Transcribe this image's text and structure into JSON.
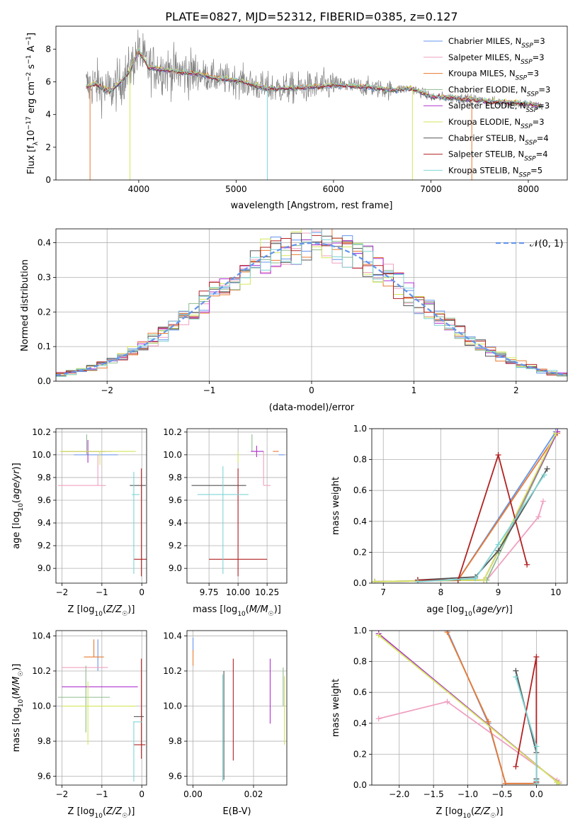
{
  "figure_title": "PLATE=0827, MJD=52312, FIBERID=0385, z=0.127",
  "colors": {
    "Chabrier MILES": "#6495ed",
    "Salpeter MILES": "#f0a0c0",
    "Kroupa MILES": "#e87a30",
    "Chabrier ELODIE": "#8fbc8f",
    "Salpeter ELODIE": "#b030d0",
    "Kroupa ELODIE": "#d4e65a",
    "Chabrier STELIB": "#555555",
    "Salpeter STELIB": "#b22222",
    "Kroupa STELIB": "#7fd4d4"
  },
  "chart_data": [
    {
      "id": "spectrum",
      "type": "line",
      "title": "PLATE=0827, MJD=52312, FIBERID=0385, z=0.127",
      "xlabel": "wavelength [Angstrom, rest frame]",
      "ylabel": "Flux [f_λ10^-17 erg cm^-2 s^-1 A^-1]",
      "xlim": [
        3150,
        8400
      ],
      "ylim": [
        0,
        9.4
      ],
      "xticks": [
        4000,
        5000,
        6000,
        7000,
        8000
      ],
      "yticks": [
        0,
        2,
        4,
        6,
        8
      ],
      "legend_position": "top-right",
      "legend": [
        {
          "label": "Chabrier MILES, N_SSP=3",
          "color": "#6495ed"
        },
        {
          "label": "Salpeter MILES, N_SSP=3",
          "color": "#f0a0c0"
        },
        {
          "label": "Kroupa MILES, N_SSP=3",
          "color": "#e87a30"
        },
        {
          "label": "Chabrier ELODIE, N_SSP=3",
          "color": "#8fbc8f"
        },
        {
          "label": "Salpeter ELODIE, N_SSP=3",
          "color": "#b030d0"
        },
        {
          "label": "Kroupa ELODIE, N_SSP=3",
          "color": "#d4e65a"
        },
        {
          "label": "Chabrier STELIB, N_SSP=4",
          "color": "#555555"
        },
        {
          "label": "Salpeter STELIB, N_SSP=4",
          "color": "#b22222"
        },
        {
          "label": "Kroupa STELIB, N_SSP=5",
          "color": "#7fd4d4"
        }
      ],
      "data_color": "#808080",
      "continuum": [
        [
          3460,
          5.7
        ],
        [
          3550,
          5.9
        ],
        [
          3700,
          5.4
        ],
        [
          3800,
          5.9
        ],
        [
          3900,
          6.6
        ],
        [
          4000,
          7.9
        ],
        [
          4100,
          6.9
        ],
        [
          4200,
          6.8
        ],
        [
          4400,
          6.6
        ],
        [
          4600,
          6.5
        ],
        [
          4800,
          6.2
        ],
        [
          5000,
          6.1
        ],
        [
          5300,
          5.6
        ],
        [
          5600,
          5.6
        ],
        [
          6000,
          5.8
        ],
        [
          6300,
          5.7
        ],
        [
          6600,
          5.5
        ],
        [
          6800,
          5.6
        ],
        [
          7000,
          5.1
        ],
        [
          7300,
          5.0
        ],
        [
          7600,
          4.8
        ],
        [
          7900,
          4.7
        ],
        [
          8150,
          4.5
        ]
      ]
    },
    {
      "id": "residuals",
      "type": "histogram",
      "xlabel": "(data-model)/error",
      "ylabel": "Normed distribution",
      "xlim": [
        -2.5,
        2.5
      ],
      "ylim": [
        0,
        0.44
      ],
      "xticks": [
        -2,
        -1,
        0,
        1,
        2
      ],
      "yticks": [
        0.0,
        0.1,
        0.2,
        0.3,
        0.4
      ],
      "grid": true,
      "legend_position": "top-right",
      "reference_label": "𝒩(0, 1)",
      "reference_color": "#6495ed",
      "bin_width": 0.1
    },
    {
      "id": "age_vs_Z",
      "type": "errorbar",
      "xlabel": "Z [log10(Z/Z☉)]",
      "ylabel": "age [log10(age/yr)]",
      "xlim": [
        -2.15,
        0.12
      ],
      "ylim": [
        8.87,
        10.23
      ],
      "xticks": [
        -2,
        -1,
        0
      ],
      "yticks": [
        9.0,
        9.2,
        9.4,
        9.6,
        9.8,
        10.0,
        10.2
      ],
      "grid": true,
      "points": [
        {
          "model": "Chabrier MILES",
          "x": -1.15,
          "xerr": [
            0.55,
            0.55
          ],
          "y": 10.0,
          "yerr": [
            0.0,
            0.0
          ]
        },
        {
          "model": "Salpeter MILES",
          "x": -1.1,
          "xerr": [
            1.0,
            0.2
          ],
          "y": 9.73,
          "yerr": [
            0.0,
            0.27
          ]
        },
        {
          "model": "Kroupa MILES",
          "x": -1.35,
          "xerr": [
            0.65,
            0.45
          ],
          "y": 10.03,
          "yerr": [
            0.0,
            0.0
          ]
        },
        {
          "model": "Chabrier ELODIE",
          "x": -1.38,
          "xerr": [
            0.65,
            0.45
          ],
          "y": 10.03,
          "yerr": [
            0.03,
            0.15
          ]
        },
        {
          "model": "Salpeter ELODIE",
          "x": -1.35,
          "xerr": [
            0.65,
            0.6
          ],
          "y": 10.03,
          "yerr": [
            0.1,
            0.1
          ]
        },
        {
          "model": "Kroupa ELODIE",
          "x": -1.05,
          "xerr": [
            1.0,
            0.9
          ],
          "y": 10.03,
          "yerr": [
            0.12,
            0.0
          ]
        },
        {
          "model": "Chabrier STELIB",
          "x": -0.2,
          "xerr": [
            0.1,
            0.3
          ],
          "y": 9.73,
          "yerr": [
            0.0,
            0.0
          ]
        },
        {
          "model": "Salpeter STELIB",
          "x": -0.01,
          "xerr": [
            0.2,
            0.2
          ],
          "y": 9.08,
          "yerr": [
            0.15,
            0.8
          ]
        },
        {
          "model": "Kroupa STELIB",
          "x": -0.2,
          "xerr": [
            0.05,
            0.15
          ],
          "y": 9.65,
          "yerr": [
            0.7,
            0.2
          ]
        }
      ]
    },
    {
      "id": "age_vs_mass",
      "type": "errorbar",
      "xlabel": "mass [log10(M/M☉)]",
      "ylabel": "",
      "xlim": [
        9.56,
        10.42
      ],
      "ylim": [
        8.87,
        10.23
      ],
      "xticks": [
        9.75,
        10.0,
        10.25
      ],
      "xticklabels": [
        "9.75",
        "10.00",
        "10.25"
      ],
      "yticks": [
        9.0,
        9.2,
        9.4,
        9.6,
        9.8,
        10.0,
        10.2
      ],
      "grid": true,
      "points": [
        {
          "model": "Chabrier MILES",
          "x": 10.35,
          "xerr": [
            0.0,
            0.05
          ],
          "y": 10.0,
          "yerr": [
            0.0,
            0.0
          ]
        },
        {
          "model": "Salpeter MILES",
          "x": 10.22,
          "xerr": [
            0.0,
            0.06
          ],
          "y": 9.73,
          "yerr": [
            0.0,
            0.3
          ]
        },
        {
          "model": "Kroupa MILES",
          "x": 10.3,
          "xerr": [
            0.0,
            0.05
          ],
          "y": 10.03,
          "yerr": [
            0.0,
            0.0
          ]
        },
        {
          "model": "Chabrier ELODIE",
          "x": 10.12,
          "xerr": [
            0.0,
            0.1
          ],
          "y": 10.03,
          "yerr": [
            0.0,
            0.15
          ]
        },
        {
          "model": "Salpeter ELODIE",
          "x": 10.16,
          "xerr": [
            0.05,
            0.06
          ],
          "y": 10.03,
          "yerr": [
            0.05,
            0.05
          ]
        },
        {
          "model": "Kroupa ELODIE",
          "x": 10.0,
          "xerr": [
            0.0,
            0.0
          ],
          "y": 10.03,
          "yerr": [
            0.1,
            0.0
          ]
        },
        {
          "model": "Chabrier STELIB",
          "x": 9.85,
          "xerr": [
            0.25,
            0.22
          ],
          "y": 9.73,
          "yerr": [
            0.0,
            0.0
          ]
        },
        {
          "model": "Salpeter STELIB",
          "x": 10.0,
          "xerr": [
            0.25,
            0.25
          ],
          "y": 9.08,
          "yerr": [
            0.15,
            0.8
          ]
        },
        {
          "model": "Kroupa STELIB",
          "x": 9.87,
          "xerr": [
            0.22,
            0.22
          ],
          "y": 9.65,
          "yerr": [
            0.7,
            0.25
          ]
        }
      ]
    },
    {
      "id": "weights_vs_age",
      "type": "line",
      "xlabel": "age [log10(age/yr)]",
      "ylabel": "mass weight",
      "xlim": [
        6.8,
        10.2
      ],
      "ylim": [
        0,
        1.0
      ],
      "xticks": [
        7,
        8,
        9,
        10
      ],
      "yticks": [
        0.0,
        0.2,
        0.4,
        0.6,
        0.8,
        1.0
      ],
      "grid": true,
      "series": [
        {
          "model": "Chabrier MILES",
          "x": [
            7.6,
            8.3,
            10.0
          ],
          "y": [
            0.02,
            0.02,
            0.98
          ]
        },
        {
          "model": "Salpeter MILES",
          "x": [
            7.6,
            8.8,
            9.7,
            9.78
          ],
          "y": [
            0.02,
            0.02,
            0.43,
            0.53
          ]
        },
        {
          "model": "Kroupa MILES",
          "x": [
            7.6,
            8.3,
            10.03
          ],
          "y": [
            0.02,
            0.02,
            0.97
          ]
        },
        {
          "model": "Chabrier ELODIE",
          "x": [
            6.85,
            8.8,
            10.03
          ],
          "y": [
            0.01,
            0.02,
            0.98
          ]
        },
        {
          "model": "Salpeter ELODIE",
          "x": [
            6.85,
            8.75,
            10.03
          ],
          "y": [
            0.01,
            0.02,
            0.98
          ]
        },
        {
          "model": "Kroupa ELODIE",
          "x": [
            6.85,
            8.75,
            10.0
          ],
          "y": [
            0.01,
            0.02,
            0.97
          ]
        },
        {
          "model": "Chabrier STELIB",
          "x": [
            7.6,
            8.6,
            9.0,
            9.85
          ],
          "y": [
            0.02,
            0.04,
            0.21,
            0.74
          ]
        },
        {
          "model": "Salpeter STELIB",
          "x": [
            7.6,
            8.3,
            9.0,
            9.5
          ],
          "y": [
            0.02,
            0.02,
            0.83,
            0.12
          ]
        },
        {
          "model": "Kroupa STELIB",
          "x": [
            7.6,
            8.6,
            9.0,
            9.8
          ],
          "y": [
            0.01,
            0.03,
            0.25,
            0.7
          ]
        }
      ]
    },
    {
      "id": "mass_vs_Z",
      "type": "errorbar",
      "xlabel": "Z [log10(Z/Z☉)]",
      "ylabel": "mass [log10(M/M☉)]",
      "xlim": [
        -2.15,
        0.12
      ],
      "ylim": [
        9.55,
        10.43
      ],
      "xticks": [
        -2,
        -1,
        0
      ],
      "yticks": [
        9.6,
        9.8,
        10.0,
        10.2,
        10.4
      ],
      "grid": true,
      "points": [
        {
          "model": "Chabrier MILES",
          "x": -1.1,
          "xerr": [
            0.0,
            0.0
          ],
          "y": 10.2,
          "yerr": [
            0.0,
            0.18
          ]
        },
        {
          "model": "Salpeter MILES",
          "x": -1.35,
          "xerr": [
            0.65,
            0.5
          ],
          "y": 10.22,
          "yerr": [
            0.0,
            0.0
          ]
        },
        {
          "model": "Kroupa MILES",
          "x": -1.2,
          "xerr": [
            0.25,
            0.25
          ],
          "y": 10.28,
          "yerr": [
            0.0,
            0.1
          ]
        },
        {
          "model": "Chabrier ELODIE",
          "x": -1.4,
          "xerr": [
            0.7,
            0.6
          ],
          "y": 10.05,
          "yerr": [
            0.2,
            0.18
          ]
        },
        {
          "model": "Salpeter ELODIE",
          "x": -1.0,
          "xerr": [
            1.0,
            0.9
          ],
          "y": 10.11,
          "yerr": [
            0.0,
            0.0
          ]
        },
        {
          "model": "Kroupa ELODIE",
          "x": -1.35,
          "xerr": [
            0.65,
            1.2
          ],
          "y": 10.0,
          "yerr": [
            0.22,
            0.14
          ]
        },
        {
          "model": "Chabrier STELIB",
          "x": -0.1,
          "xerr": [
            0.1,
            0.15
          ],
          "y": 9.94,
          "yerr": [
            0.0,
            0.0
          ]
        },
        {
          "model": "Salpeter STELIB",
          "x": -0.01,
          "xerr": [
            0.2,
            0.1
          ],
          "y": 9.78,
          "yerr": [
            0.08,
            0.49
          ]
        },
        {
          "model": "Kroupa STELIB",
          "x": -0.2,
          "xerr": [
            0.02,
            0.2
          ],
          "y": 9.91,
          "yerr": [
            0.34,
            0.0
          ]
        }
      ]
    },
    {
      "id": "mass_vs_EBV",
      "type": "errorbar",
      "xlabel": "E(B-V)",
      "ylabel": "",
      "xlim": [
        -0.002,
        0.031
      ],
      "ylim": [
        9.55,
        10.43
      ],
      "xticks": [
        0.0,
        0.02
      ],
      "xticklabels": [
        "0.00",
        "0.02"
      ],
      "yticks": [
        9.6,
        9.8,
        10.0,
        10.2,
        10.4
      ],
      "grid": true,
      "points": [
        {
          "model": "Chabrier MILES",
          "x": 0.0,
          "xerr": [
            0,
            0
          ],
          "y": 10.35,
          "yerr": [
            0.04,
            0.04
          ]
        },
        {
          "model": "Kroupa MILES",
          "x": 0.0,
          "xerr": [
            0,
            0
          ],
          "y": 10.28,
          "yerr": [
            0.05,
            0.04
          ]
        },
        {
          "model": "Chabrier STELIB",
          "x": 0.0102,
          "xerr": [
            0,
            0
          ],
          "y": 9.94,
          "yerr": [
            0.36,
            0.26
          ]
        },
        {
          "model": "Kroupa STELIB",
          "x": 0.0098,
          "xerr": [
            0,
            0
          ],
          "y": 9.91,
          "yerr": [
            0.34,
            0.27
          ]
        },
        {
          "model": "Salpeter STELIB",
          "x": 0.0133,
          "xerr": [
            0,
            0
          ],
          "y": 9.98,
          "yerr": [
            0.29,
            0.29
          ]
        },
        {
          "model": "Salpeter ELODIE",
          "x": 0.0255,
          "xerr": [
            0,
            0
          ],
          "y": 10.08,
          "yerr": [
            0.18,
            0.19
          ]
        },
        {
          "model": "Chabrier ELODIE",
          "x": 0.0298,
          "xerr": [
            0,
            0
          ],
          "y": 10.11,
          "yerr": [
            0.11,
            0.11
          ]
        },
        {
          "model": "Kroupa ELODIE",
          "x": 0.0302,
          "xerr": [
            0,
            0
          ],
          "y": 10.0,
          "yerr": [
            0.22,
            0.17
          ]
        }
      ]
    },
    {
      "id": "weights_vs_Z",
      "type": "line",
      "xlabel": "Z [log10(Z/Z☉)]",
      "ylabel": "mass weight",
      "xlim": [
        -2.4,
        0.45
      ],
      "ylim": [
        0,
        1.0
      ],
      "xticks": [
        -2.0,
        -1.5,
        -1.0,
        -0.5,
        0.0
      ],
      "xticklabels": [
        "−2.0",
        "−1.5",
        "−1.0",
        "−0.5",
        "0.0"
      ],
      "yticks": [
        0.0,
        0.2,
        0.4,
        0.6,
        0.8,
        1.0
      ],
      "grid": true,
      "series": [
        {
          "model": "Chabrier MILES",
          "x": [
            -1.3,
            -0.7,
            -0.45,
            0.0
          ],
          "y": [
            1.0,
            0.4,
            0.01,
            0.01
          ]
        },
        {
          "model": "Salpeter MILES",
          "x": [
            -2.3,
            -1.3,
            0.3,
            0.33
          ],
          "y": [
            0.43,
            0.54,
            0.03,
            0.02
          ]
        },
        {
          "model": "Kroupa MILES",
          "x": [
            -1.3,
            -0.7,
            -0.45,
            0.0
          ],
          "y": [
            0.99,
            0.41,
            0.01,
            0.01
          ]
        },
        {
          "model": "Chabrier ELODIE",
          "x": [
            -2.3,
            0.3,
            0.33
          ],
          "y": [
            0.98,
            0.02,
            0.01
          ]
        },
        {
          "model": "Salpeter ELODIE",
          "x": [
            -2.3,
            0.3,
            0.33
          ],
          "y": [
            0.98,
            0.02,
            0.01
          ]
        },
        {
          "model": "Kroupa ELODIE",
          "x": [
            -2.3,
            0.3,
            0.33
          ],
          "y": [
            0.97,
            0.02,
            0.01
          ]
        },
        {
          "model": "Chabrier STELIB",
          "x": [
            -0.3,
            0.0,
            0.0
          ],
          "y": [
            0.74,
            0.21,
            0.04
          ]
        },
        {
          "model": "Salpeter STELIB",
          "x": [
            -0.3,
            0.0,
            0.0,
            0.0
          ],
          "y": [
            0.12,
            0.83,
            0.02,
            0.02
          ]
        },
        {
          "model": "Kroupa STELIB",
          "x": [
            -0.3,
            0.0,
            0.0,
            0.0
          ],
          "y": [
            0.7,
            0.25,
            0.03,
            0.01
          ]
        }
      ]
    }
  ]
}
